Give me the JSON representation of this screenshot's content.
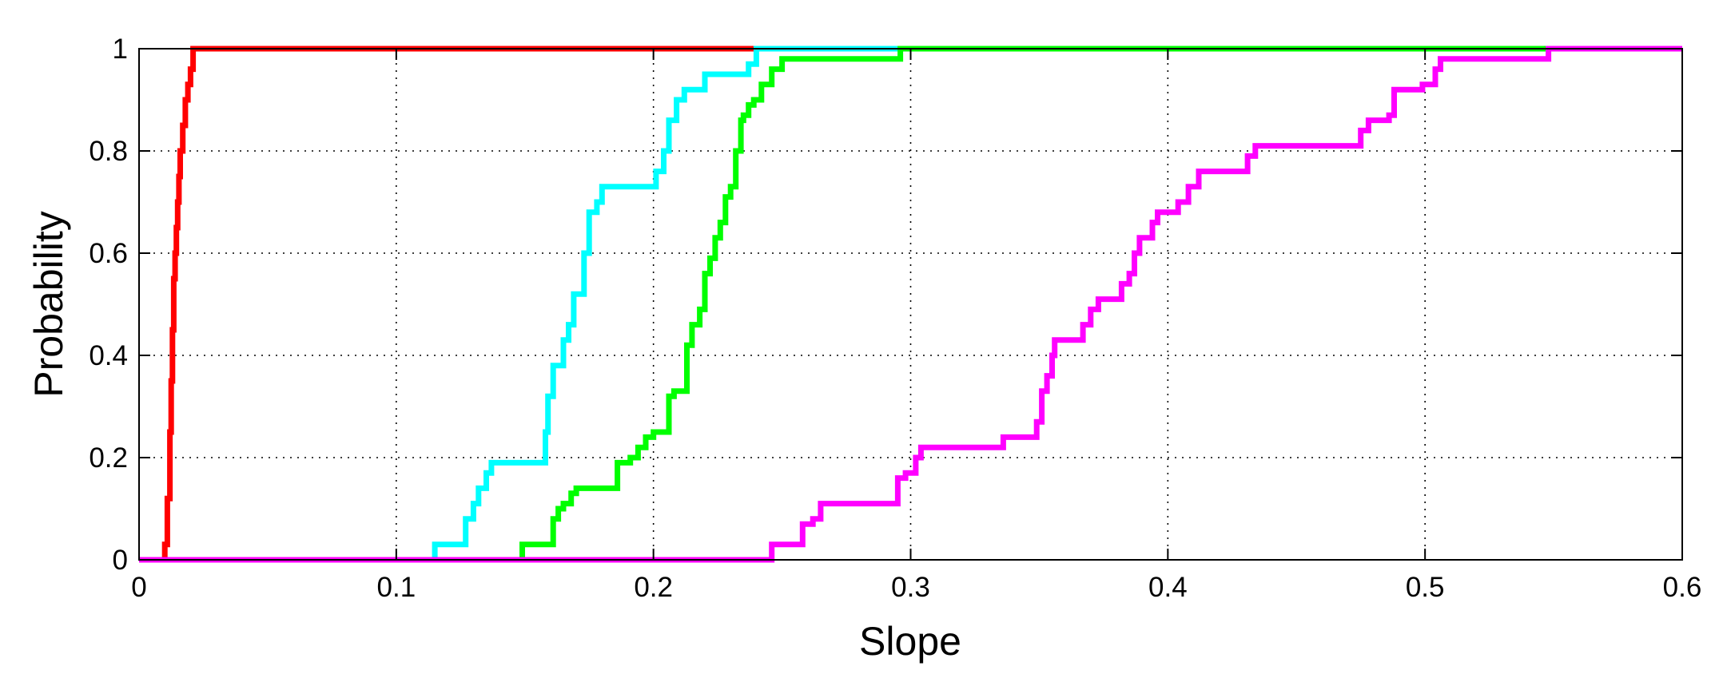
{
  "chart_data": {
    "type": "line",
    "title": "",
    "xlabel": "Slope",
    "ylabel": "Probability",
    "xlim": [
      0,
      0.6
    ],
    "ylim": [
      0,
      1
    ],
    "xticks": [
      0,
      0.1,
      0.2,
      0.3,
      0.4,
      0.5,
      0.6
    ],
    "xtick_labels": [
      "0",
      "0.1",
      "0.2",
      "0.3",
      "0.4",
      "0.5",
      "0.6"
    ],
    "yticks": [
      0,
      0.2,
      0.4,
      0.6,
      0.8,
      1
    ],
    "ytick_labels": [
      "0",
      "0.2",
      "0.4",
      "0.6",
      "0.8",
      "1"
    ],
    "grid": true,
    "legend": "none",
    "series": [
      {
        "color": "#ff0000",
        "x": [
          0,
          0.009,
          0.01,
          0.011,
          0.012,
          0.0125,
          0.013,
          0.0135,
          0.014,
          0.0145,
          0.015,
          0.0155,
          0.016,
          0.017,
          0.018,
          0.019,
          0.02,
          0.021,
          0.6
        ],
        "y": [
          0,
          0,
          0.03,
          0.12,
          0.25,
          0.35,
          0.45,
          0.55,
          0.6,
          0.65,
          0.7,
          0.75,
          0.8,
          0.85,
          0.9,
          0.93,
          0.96,
          1,
          1
        ]
      },
      {
        "color": "#00ffff",
        "x": [
          0,
          0.114,
          0.115,
          0.126,
          0.127,
          0.13,
          0.132,
          0.135,
          0.137,
          0.138,
          0.156,
          0.158,
          0.159,
          0.161,
          0.163,
          0.165,
          0.167,
          0.169,
          0.171,
          0.173,
          0.175,
          0.178,
          0.18,
          0.182,
          0.185,
          0.2,
          0.201,
          0.203,
          0.204,
          0.206,
          0.209,
          0.212,
          0.22,
          0.235,
          0.237,
          0.24,
          0.6
        ],
        "y": [
          0,
          0,
          0.03,
          0.03,
          0.08,
          0.11,
          0.14,
          0.17,
          0.19,
          0.19,
          0.19,
          0.25,
          0.32,
          0.38,
          0.38,
          0.43,
          0.46,
          0.52,
          0.52,
          0.6,
          0.68,
          0.7,
          0.73,
          0.73,
          0.73,
          0.73,
          0.76,
          0.76,
          0.8,
          0.86,
          0.9,
          0.92,
          0.95,
          0.95,
          0.97,
          1,
          1
        ]
      },
      {
        "color": "#00ff00",
        "x": [
          0,
          0.148,
          0.149,
          0.16,
          0.161,
          0.163,
          0.165,
          0.168,
          0.17,
          0.185,
          0.186,
          0.189,
          0.191,
          0.194,
          0.197,
          0.2,
          0.205,
          0.206,
          0.208,
          0.212,
          0.213,
          0.215,
          0.218,
          0.22,
          0.222,
          0.224,
          0.226,
          0.228,
          0.23,
          0.232,
          0.234,
          0.235,
          0.237,
          0.239,
          0.242,
          0.246,
          0.25,
          0.295,
          0.296,
          0.6
        ],
        "y": [
          0,
          0,
          0.03,
          0.03,
          0.08,
          0.1,
          0.11,
          0.13,
          0.14,
          0.14,
          0.19,
          0.19,
          0.2,
          0.22,
          0.24,
          0.25,
          0.25,
          0.32,
          0.33,
          0.33,
          0.42,
          0.46,
          0.49,
          0.56,
          0.59,
          0.63,
          0.66,
          0.71,
          0.73,
          0.8,
          0.86,
          0.87,
          0.89,
          0.9,
          0.93,
          0.96,
          0.98,
          0.98,
          1,
          1
        ]
      },
      {
        "color": "#ff00ff",
        "x": [
          0,
          0.245,
          0.246,
          0.256,
          0.258,
          0.262,
          0.265,
          0.29,
          0.295,
          0.298,
          0.3,
          0.302,
          0.304,
          0.334,
          0.336,
          0.347,
          0.349,
          0.351,
          0.353,
          0.355,
          0.356,
          0.365,
          0.367,
          0.37,
          0.373,
          0.38,
          0.382,
          0.385,
          0.387,
          0.389,
          0.391,
          0.394,
          0.396,
          0.397,
          0.404,
          0.408,
          0.412,
          0.417,
          0.427,
          0.431,
          0.434,
          0.472,
          0.475,
          0.478,
          0.486,
          0.488,
          0.495,
          0.499,
          0.503,
          0.504,
          0.506,
          0.532,
          0.545,
          0.548,
          0.6
        ],
        "y": [
          0,
          0,
          0.03,
          0.03,
          0.07,
          0.08,
          0.11,
          0.11,
          0.16,
          0.17,
          0.17,
          0.2,
          0.22,
          0.22,
          0.24,
          0.24,
          0.27,
          0.33,
          0.36,
          0.4,
          0.43,
          0.43,
          0.46,
          0.49,
          0.51,
          0.51,
          0.54,
          0.56,
          0.6,
          0.63,
          0.63,
          0.66,
          0.68,
          0.68,
          0.7,
          0.73,
          0.76,
          0.76,
          0.76,
          0.79,
          0.81,
          0.81,
          0.84,
          0.86,
          0.87,
          0.92,
          0.92,
          0.93,
          0.93,
          0.96,
          0.98,
          0.98,
          0.98,
          1,
          1
        ]
      }
    ]
  }
}
